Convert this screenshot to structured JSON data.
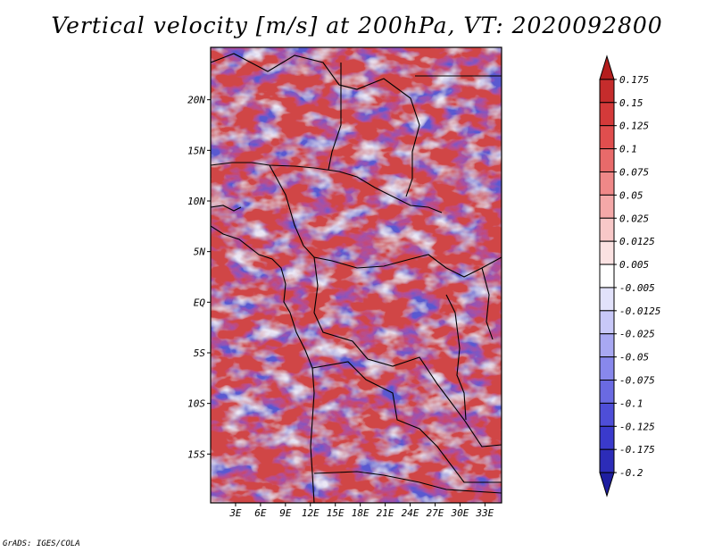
{
  "title": "Vertical velocity [m/s] at 200hPa, VT: 2020092800",
  "credit": "GrADS: IGES/COLA",
  "map": {
    "variable": "Vertical velocity",
    "units": "m/s",
    "level": "200hPa",
    "valid_time": "2020092800",
    "lon_range": [
      0,
      35
    ],
    "lat_range": [
      -20,
      25
    ],
    "x_tick_labels": [
      {
        "lon": 3,
        "label": "3E"
      },
      {
        "lon": 6,
        "label": "6E"
      },
      {
        "lon": 9,
        "label": "9E"
      },
      {
        "lon": 12,
        "label": "12E"
      },
      {
        "lon": 15,
        "label": "15E"
      },
      {
        "lon": 18,
        "label": "18E"
      },
      {
        "lon": 21,
        "label": "21E"
      },
      {
        "lon": 24,
        "label": "24E"
      },
      {
        "lon": 27,
        "label": "27E"
      },
      {
        "lon": 30,
        "label": "30E"
      },
      {
        "lon": 33,
        "label": "33E"
      }
    ],
    "y_tick_labels": [
      {
        "lat": 20,
        "label": "20N"
      },
      {
        "lat": 15,
        "label": "15N"
      },
      {
        "lat": 10,
        "label": "10N"
      },
      {
        "lat": 5,
        "label": "5N"
      },
      {
        "lat": 0,
        "label": "EQ"
      },
      {
        "lat": -5,
        "label": "5S"
      },
      {
        "lat": -10,
        "label": "10S"
      },
      {
        "lat": -15,
        "label": "15S"
      }
    ]
  },
  "colorbar": {
    "labels": [
      "0.175",
      "0.15",
      "0.125",
      "0.1",
      "0.075",
      "0.05",
      "0.025",
      "0.0125",
      "0.005",
      "-0.005",
      "-0.0125",
      "-0.025",
      "-0.05",
      "-0.075",
      "-0.1",
      "-0.125",
      "-0.175",
      "-0.2"
    ],
    "colors": [
      "#b41e1e",
      "#c52c2c",
      "#d43a3a",
      "#e04e4e",
      "#e86a6a",
      "#ef8888",
      "#f4a8a8",
      "#f8c8c8",
      "#fbe2e2",
      "#ffffff",
      "#e2e2fb",
      "#c8c8f8",
      "#a8a8f2",
      "#8888ec",
      "#6a6ae2",
      "#4e4ed8",
      "#3a3acc",
      "#2c2cb8",
      "#1e1ea0"
    ]
  }
}
